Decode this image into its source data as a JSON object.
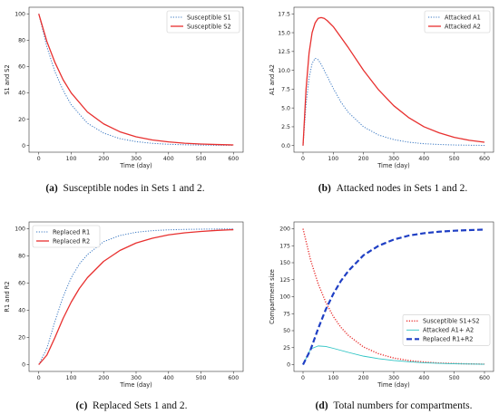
{
  "chart_data": [
    {
      "id": "a",
      "type": "line",
      "caption_tag": "(a)",
      "caption": "Susceptible nodes in Sets 1 and 2.",
      "xlabel": "Time (day)",
      "ylabel": "S1 and S2",
      "xlim": [
        0,
        600
      ],
      "ylim": [
        0,
        100
      ],
      "xticks": [
        0,
        100,
        200,
        300,
        400,
        500,
        600
      ],
      "yticks": [
        0,
        20,
        40,
        60,
        80,
        100
      ],
      "legend": "top-right",
      "x": [
        0,
        25,
        50,
        75,
        100,
        150,
        200,
        250,
        300,
        350,
        400,
        450,
        500,
        550,
        600
      ],
      "series": [
        {
          "name": "Susceptible S1",
          "color": "#3a78c2",
          "style": "dotted",
          "width": 1,
          "values": [
            100,
            75,
            56,
            42,
            31,
            17,
            9.5,
            5.3,
            3,
            1.7,
            1,
            0.6,
            0.4,
            0.25,
            0.2
          ]
        },
        {
          "name": "Susceptible S2",
          "color": "#e8302f",
          "style": "solid",
          "width": 1.3,
          "values": [
            100,
            79,
            63,
            50,
            40,
            25.5,
            16.5,
            10.5,
            6.7,
            4.3,
            2.8,
            1.8,
            1.2,
            0.8,
            0.5
          ]
        }
      ]
    },
    {
      "id": "b",
      "type": "line",
      "caption_tag": "(b)",
      "caption": "Attacked nodes in Sets 1 and 2.",
      "xlabel": "Time (day)",
      "ylabel": "A1 and A2",
      "xlim": [
        0,
        600
      ],
      "ylim": [
        0,
        17.5
      ],
      "xticks": [
        0,
        100,
        200,
        300,
        400,
        500,
        600
      ],
      "yticks": [
        0.0,
        2.5,
        5.0,
        7.5,
        10.0,
        12.5,
        15.0,
        17.5
      ],
      "tick_format": "1dp",
      "legend": "top-right",
      "x": [
        0,
        10,
        20,
        30,
        40,
        50,
        60,
        70,
        80,
        100,
        125,
        150,
        200,
        250,
        300,
        350,
        400,
        450,
        500,
        550,
        600
      ],
      "series": [
        {
          "name": "Attacked A1",
          "color": "#3a78c2",
          "style": "dotted",
          "width": 1,
          "values": [
            0,
            5.5,
            9,
            10.9,
            11.6,
            11.4,
            10.8,
            10.0,
            9.2,
            7.6,
            5.8,
            4.4,
            2.5,
            1.4,
            0.8,
            0.45,
            0.25,
            0.15,
            0.08,
            0.05,
            0.03
          ]
        },
        {
          "name": "Attacked A2",
          "color": "#e8302f",
          "style": "solid",
          "width": 1.3,
          "values": [
            0,
            7.5,
            12.3,
            15.0,
            16.3,
            16.9,
            17.0,
            16.9,
            16.6,
            15.8,
            14.4,
            13.0,
            10.0,
            7.4,
            5.3,
            3.7,
            2.5,
            1.7,
            1.1,
            0.7,
            0.45
          ]
        }
      ]
    },
    {
      "id": "c",
      "type": "line",
      "caption_tag": "(c)",
      "caption": "Replaced Sets 1 and 2.",
      "xlabel": "Time (day)",
      "ylabel": "R1 and R2",
      "xlim": [
        0,
        600
      ],
      "ylim": [
        0,
        100
      ],
      "xticks": [
        0,
        100,
        200,
        300,
        400,
        500,
        600
      ],
      "yticks": [
        0,
        20,
        40,
        60,
        80,
        100
      ],
      "legend": "top-left",
      "x": [
        0,
        25,
        50,
        75,
        100,
        125,
        150,
        200,
        250,
        300,
        350,
        400,
        450,
        500,
        550,
        600
      ],
      "series": [
        {
          "name": "Replaced R1",
          "color": "#3a78c2",
          "style": "dotted",
          "width": 1,
          "values": [
            0,
            12,
            32,
            50,
            64,
            74,
            81,
            90.5,
            95,
            97.4,
            98.6,
            99.2,
            99.5,
            99.7,
            99.8,
            99.9
          ]
        },
        {
          "name": "Replaced R2",
          "color": "#e8302f",
          "style": "solid",
          "width": 1.3,
          "values": [
            0,
            7,
            20,
            34,
            46,
            56,
            64,
            76,
            84,
            89.5,
            93,
            95.5,
            97,
            98,
            98.8,
            99.3
          ]
        }
      ]
    },
    {
      "id": "d",
      "type": "line",
      "caption_tag": "(d)",
      "caption": "Total numbers for compartments.",
      "xlabel": "Time (day)",
      "ylabel": "Compartment size",
      "xlim": [
        0,
        600
      ],
      "ylim": [
        0,
        200
      ],
      "xticks": [
        0,
        100,
        200,
        300,
        400,
        500,
        600
      ],
      "yticks": [
        0,
        25,
        50,
        75,
        100,
        125,
        150,
        175,
        200
      ],
      "legend": "center-right",
      "x": [
        0,
        25,
        50,
        75,
        100,
        125,
        150,
        200,
        250,
        300,
        350,
        400,
        450,
        500,
        550,
        600
      ],
      "series": [
        {
          "name": "Susceptible S1+S2",
          "color": "#e8302f",
          "style": "dotted",
          "width": 1.4,
          "values": [
            200,
            154,
            119,
            92,
            71,
            55,
            43,
            26,
            16,
            9.7,
            6,
            3.8,
            2.4,
            1.6,
            1.1,
            0.7
          ]
        },
        {
          "name": "Attacked A1+ A2",
          "color": "#2ec4c4",
          "style": "solid",
          "width": 0.9,
          "values": [
            0,
            23,
            27.5,
            26.8,
            24,
            21,
            18,
            12.5,
            8.8,
            6.1,
            4.2,
            2.8,
            1.9,
            1.3,
            0.85,
            0.55
          ]
        },
        {
          "name": "Replaced R1+R2",
          "color": "#1f3fc4",
          "style": "dashed",
          "width": 2.2,
          "values": [
            0,
            22,
            53,
            81,
            104,
            123,
            138,
            161,
            175,
            184,
            190,
            193.4,
            195.7,
            197.1,
            198,
            198.8
          ]
        }
      ]
    }
  ]
}
